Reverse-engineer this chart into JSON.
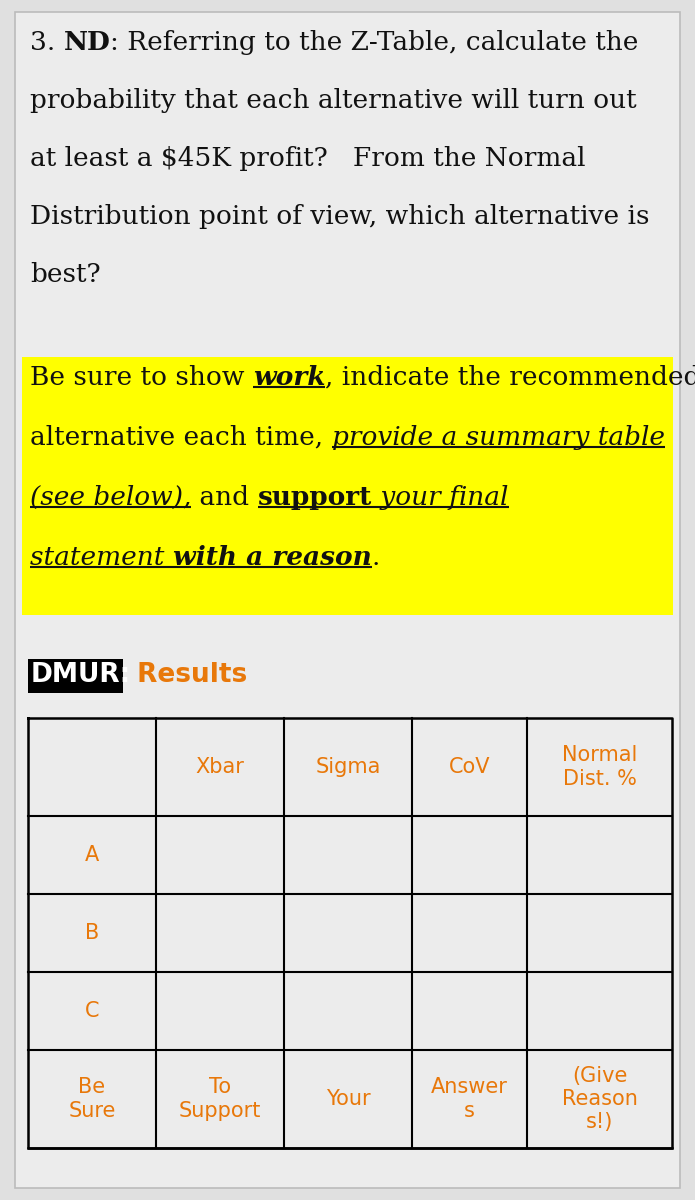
{
  "bg_color": "#e0e0e0",
  "content_bg": "#ececec",
  "white": "#ffffff",
  "black": "#000000",
  "orange": "#e8780a",
  "yellow_highlight": "#ffff00",
  "dark_text": "#111111",
  "dmur_label": "DMUR:",
  "results_label": " Results",
  "table_headers": [
    "",
    "Xbar",
    "Sigma",
    "CoV",
    "Normal\nDist. %"
  ],
  "table_rows": [
    "A",
    "B",
    "C"
  ],
  "table_footer": [
    "Be\nSure",
    "To\nSupport",
    "Your",
    "Answer\ns",
    "(Give\nReason\ns!)"
  ],
  "font_main": "DejaVu Serif",
  "font_sans": "DejaVu Sans",
  "fs_main": 19,
  "fs_table": 15,
  "fs_dmur": 19
}
